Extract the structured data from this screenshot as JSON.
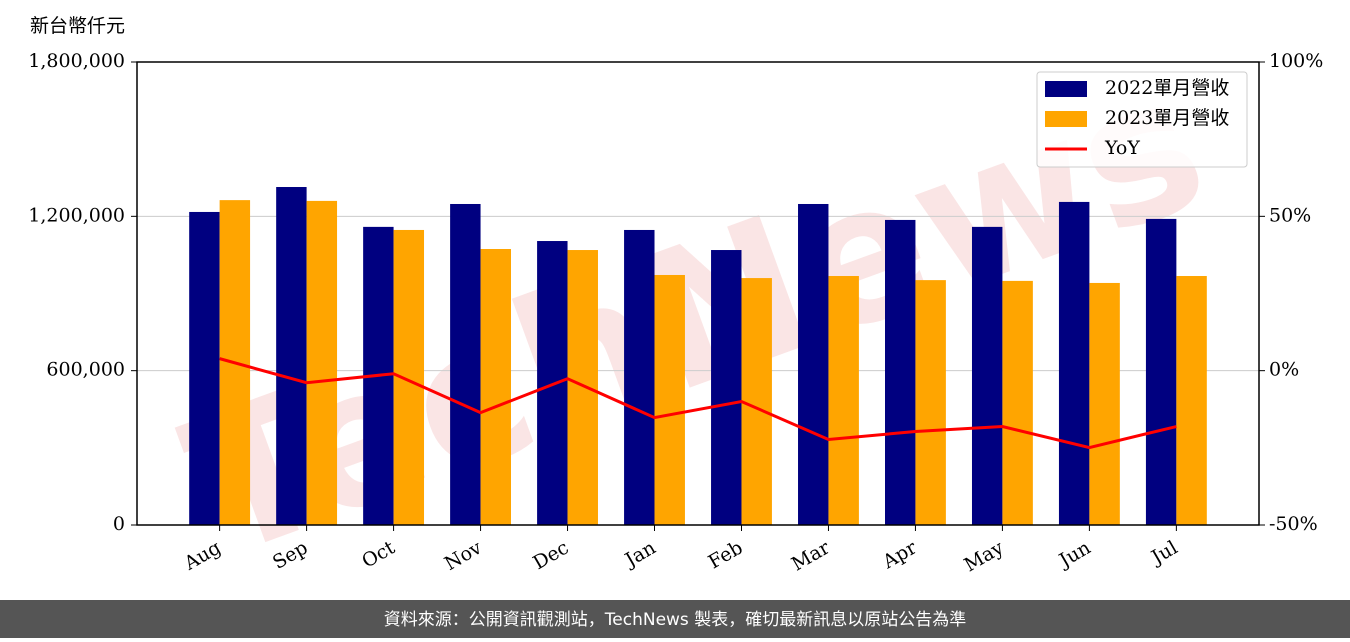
{
  "chart_data": {
    "type": "bar",
    "watermark": "TechNews",
    "y_label": "新台幣仟元",
    "footer": "資料來源：公開資訊觀測站，TechNews 製表，確切最新訊息以原站公告為準",
    "categories": [
      "Aug",
      "Sep",
      "Oct",
      "Nov",
      "Dec",
      "Jan",
      "Feb",
      "Mar",
      "Apr",
      "May",
      "Jun",
      "Jul"
    ],
    "series": [
      {
        "name": "2022單月營收",
        "color": "#000080",
        "type": "bar",
        "values": [
          1217000,
          1314000,
          1159000,
          1248000,
          1104000,
          1147000,
          1069000,
          1248000,
          1186000,
          1159000,
          1256000,
          1190000
        ]
      },
      {
        "name": "2023單月營收",
        "color": "#ffa500",
        "type": "bar",
        "values": [
          1263000,
          1260000,
          1147000,
          1073000,
          1069000,
          972000,
          960000,
          968000,
          952000,
          949000,
          941000,
          968000
        ]
      },
      {
        "name": "YoY",
        "color": "#ff0000",
        "type": "line",
        "axis": "y2",
        "values": [
          3.9,
          -3.9,
          -1.0,
          -13.6,
          -2.6,
          -15.2,
          -10.0,
          -22.3,
          -19.7,
          -18.1,
          -24.9,
          -18.1
        ]
      }
    ],
    "ylim": [
      0,
      1800000
    ],
    "yticks": [
      0,
      {
        "value": 600000,
        "label": "600,000"
      },
      {
        "value": 1200000,
        "label": "1,200,000"
      },
      {
        "value": 1800000,
        "label": "1,800,000"
      }
    ],
    "y2lim": [
      -50,
      100
    ],
    "y2ticks": [
      {
        "value": -50,
        "label": "-50%"
      },
      {
        "value": 0,
        "label": "0%"
      },
      {
        "value": 50,
        "label": "50%"
      },
      {
        "value": 100,
        "label": "100%"
      }
    ],
    "grid": true,
    "legend": "upper right"
  }
}
